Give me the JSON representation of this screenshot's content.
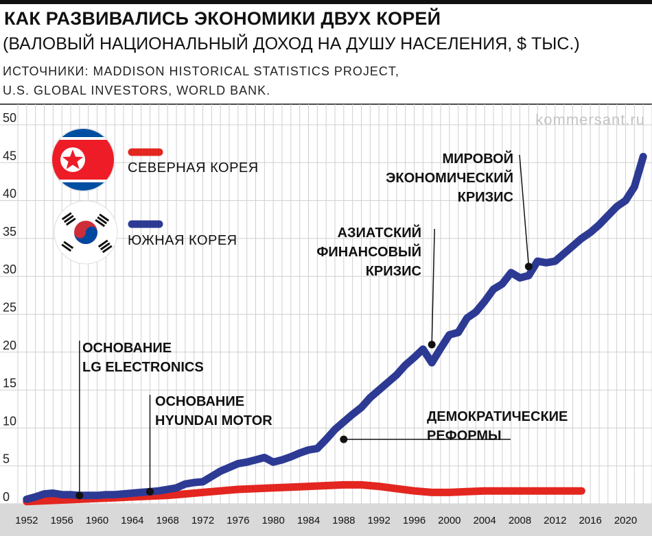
{
  "header": {
    "title": "КАК РАЗВИВАЛИСЬ ЭКОНОМИКИ ДВУХ КОРЕЙ",
    "subtitle": "(ВАЛОВЫЙ НАЦИОНАЛЬНЫЙ ДОХОД НА ДУШУ НАСЕЛЕНИЯ, $ ТЫС.)",
    "source_line1": "ИСТОЧНИКИ: MADDISON HISTORICAL STATISTICS PROJECT,",
    "source_line2": "U.S. GLOBAL INVESTORS, WORLD BANK."
  },
  "watermark": "kommersant.ru",
  "legend": {
    "north": "СЕВЕРНАЯ КОРЕЯ",
    "south": "ЮЖНАЯ КОРЕЯ"
  },
  "annotations": {
    "lg_1": "ОСНОВАНИЕ",
    "lg_2": "LG ELECTRONICS",
    "hyundai_1": "ОСНОВАНИЕ",
    "hyundai_2": "HYUNDAI MOTOR",
    "democracy_1": "ДЕМОКРАТИЧЕСКИЕ",
    "democracy_2": "РЕФОРМЫ",
    "asian_1": "АЗИАТСКИЙ",
    "asian_2": "ФИНАНСОВЫЙ",
    "asian_3": "КРИЗИС",
    "world_1": "МИРОВОЙ",
    "world_2": "ЭКОНОМИЧЕСКИЙ",
    "world_3": "КРИЗИС"
  },
  "colors": {
    "north": "#e3261f",
    "south": "#2d3a94",
    "grid": "#cfcfcf",
    "axis_band": "#d9d9d9"
  },
  "chart_data": {
    "type": "line",
    "xlim": [
      1951,
      2023
    ],
    "ylim": [
      0,
      50
    ],
    "yticks": [
      0,
      5,
      10,
      15,
      20,
      25,
      30,
      35,
      40,
      45,
      50
    ],
    "xticks": [
      1952,
      1956,
      1960,
      1964,
      1968,
      1972,
      1976,
      1980,
      1984,
      1988,
      1992,
      1996,
      2000,
      2004,
      2008,
      2012,
      2016,
      2020
    ],
    "grid": true,
    "legend_position": "top-left",
    "series": [
      {
        "name": "СЕВЕРНАЯ КОРЕЯ",
        "color": "#e3261f",
        "x": [
          1952,
          1954,
          1956,
          1958,
          1960,
          1962,
          1964,
          1966,
          1968,
          1970,
          1972,
          1974,
          1976,
          1978,
          1980,
          1982,
          1984,
          1986,
          1988,
          1990,
          1992,
          1994,
          1996,
          1998,
          2000,
          2002,
          2004,
          2006,
          2008,
          2010,
          2012,
          2014,
          2015
        ],
        "values": [
          0.3,
          0.4,
          0.5,
          0.6,
          0.7,
          0.8,
          0.9,
          1.0,
          1.1,
          1.3,
          1.5,
          1.7,
          1.9,
          2.0,
          2.1,
          2.2,
          2.3,
          2.4,
          2.5,
          2.5,
          2.3,
          2.0,
          1.7,
          1.5,
          1.5,
          1.6,
          1.7,
          1.7,
          1.7,
          1.7,
          1.7,
          1.7,
          1.7
        ]
      },
      {
        "name": "ЮЖНАЯ КОРЕЯ",
        "color": "#2d3a94",
        "x": [
          1952,
          1953,
          1954,
          1955,
          1956,
          1957,
          1958,
          1959,
          1960,
          1961,
          1962,
          1963,
          1964,
          1965,
          1966,
          1967,
          1968,
          1969,
          1970,
          1971,
          1972,
          1973,
          1974,
          1975,
          1976,
          1977,
          1978,
          1979,
          1980,
          1981,
          1982,
          1983,
          1984,
          1985,
          1986,
          1987,
          1988,
          1989,
          1990,
          1991,
          1992,
          1993,
          1994,
          1995,
          1996,
          1997,
          1998,
          1999,
          2000,
          2001,
          2002,
          2003,
          2004,
          2005,
          2006,
          2007,
          2008,
          2009,
          2010,
          2011,
          2012,
          2013,
          2014,
          2015,
          2016,
          2017,
          2018,
          2019,
          2020,
          2021,
          2022
        ],
        "values": [
          0.6,
          0.9,
          1.3,
          1.4,
          1.2,
          1.2,
          1.1,
          1.1,
          1.1,
          1.2,
          1.2,
          1.3,
          1.4,
          1.5,
          1.6,
          1.7,
          1.9,
          2.1,
          2.6,
          2.8,
          2.9,
          3.6,
          4.3,
          4.8,
          5.3,
          5.5,
          5.8,
          6.1,
          5.5,
          5.8,
          6.2,
          6.7,
          7.1,
          7.3,
          8.5,
          9.8,
          10.8,
          11.8,
          12.7,
          14.0,
          15.0,
          16.0,
          17.0,
          18.3,
          19.3,
          20.4,
          18.6,
          20.5,
          22.3,
          22.6,
          24.5,
          25.3,
          26.7,
          28.3,
          29.0,
          30.5,
          29.8,
          30.1,
          32.0,
          31.8,
          32.0,
          33.0,
          34.0,
          35.0,
          35.8,
          36.8,
          38.0,
          39.2,
          40.0,
          41.8,
          45.8
        ]
      }
    ],
    "markers": [
      {
        "x": 1958,
        "y": 1.1
      },
      {
        "x": 1966,
        "y": 1.6
      },
      {
        "x": 1988,
        "y": 8.5
      },
      {
        "x": 1998,
        "y": 21.0
      },
      {
        "x": 2009,
        "y": 31.3
      }
    ]
  }
}
